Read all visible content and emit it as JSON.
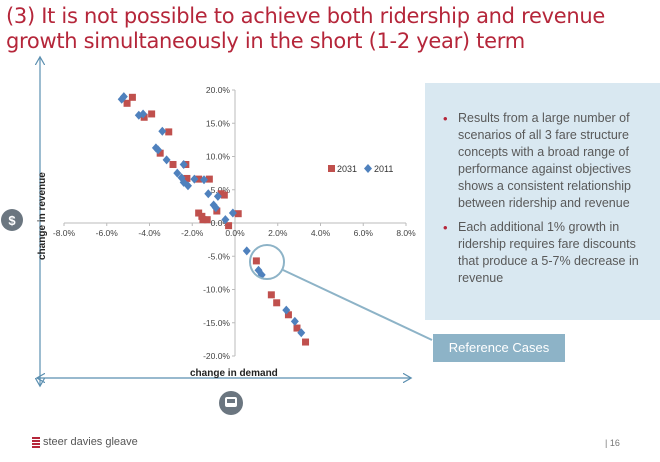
{
  "title": "(3) It is not possible to achieve both ridership and revenue growth simultaneously in the short (1-2 year) term",
  "chart_data": {
    "type": "scatter",
    "xlabel": "change in demand",
    "ylabel": "change in revenue",
    "xlim": [
      -8,
      8
    ],
    "ylim": [
      -20,
      20
    ],
    "x_ticks": [
      "-8.0%",
      "-6.0%",
      "-4.0%",
      "-2.0%",
      "0.0%",
      "2.0%",
      "4.0%",
      "6.0%",
      "8.0%"
    ],
    "y_ticks": [
      "20.0%",
      "15.0%",
      "10.0%",
      "5.0%",
      "0.0%",
      "-5.0%",
      "-10.0%",
      "-15.0%",
      "-20.0%"
    ],
    "grid": false,
    "legend_position": "right",
    "series": [
      {
        "name": "2031",
        "marker": "square",
        "color": "#c0504d",
        "points": [
          [
            -4.8,
            18.9
          ],
          [
            -5.05,
            18.0
          ],
          [
            -4.25,
            15.9
          ],
          [
            -3.9,
            16.4
          ],
          [
            -3.1,
            13.7
          ],
          [
            -3.5,
            10.5
          ],
          [
            -2.9,
            8.8
          ],
          [
            -2.3,
            8.8
          ],
          [
            -2.25,
            6.7
          ],
          [
            -1.7,
            6.6
          ],
          [
            -1.2,
            6.6
          ],
          [
            -0.65,
            4.4
          ],
          [
            -0.5,
            4.2
          ],
          [
            -0.85,
            1.8
          ],
          [
            -1.7,
            1.5
          ],
          [
            -1.55,
            1.0
          ],
          [
            -1.5,
            0.5
          ],
          [
            -1.3,
            0.5
          ],
          [
            0.15,
            1.4
          ],
          [
            -0.3,
            -0.4
          ],
          [
            1.0,
            -5.7
          ],
          [
            1.7,
            -10.8
          ],
          [
            1.95,
            -12.0
          ],
          [
            2.5,
            -13.8
          ],
          [
            2.9,
            -15.8
          ],
          [
            3.3,
            -17.9
          ]
        ]
      },
      {
        "name": "2011",
        "marker": "diamond",
        "color": "#4f81bd",
        "points": [
          [
            -5.3,
            18.6
          ],
          [
            -5.2,
            19.0
          ],
          [
            -4.5,
            16.2
          ],
          [
            -4.3,
            16.4
          ],
          [
            -3.4,
            13.8
          ],
          [
            -3.7,
            11.3
          ],
          [
            -3.6,
            11.0
          ],
          [
            -3.2,
            9.5
          ],
          [
            -2.7,
            7.5
          ],
          [
            -2.5,
            6.8
          ],
          [
            -2.4,
            6.1
          ],
          [
            -2.2,
            5.6
          ],
          [
            -2.4,
            8.8
          ],
          [
            -1.9,
            6.6
          ],
          [
            -1.45,
            6.5
          ],
          [
            -1.25,
            4.4
          ],
          [
            -0.8,
            4.0
          ],
          [
            -1.0,
            2.7
          ],
          [
            -0.9,
            2.3
          ],
          [
            -0.45,
            0.5
          ],
          [
            -0.1,
            1.5
          ],
          [
            0.55,
            -4.2
          ],
          [
            1.1,
            -7.1
          ],
          [
            1.25,
            -7.8
          ],
          [
            2.4,
            -13.1
          ],
          [
            2.8,
            -14.8
          ],
          [
            3.1,
            -16.5
          ]
        ]
      }
    ]
  },
  "bullets": [
    "Results from a large number of scenarios of all 3 fare structure concepts with a broad range of performance against objectives shows a consistent relationship between ridership and revenue",
    "Each additional 1% growth in ridership requires fare discounts that produce a 5-7% decrease in revenue"
  ],
  "callout": "Reference Cases",
  "icons": {
    "revenue": "dollar-icon",
    "demand": "bus-icon"
  },
  "footer": {
    "logo": "steer davies gleave",
    "page": "| 16"
  },
  "colors": {
    "accent": "#b5263a",
    "panel": "#d9e8f1",
    "callout": "#8db3c7"
  }
}
